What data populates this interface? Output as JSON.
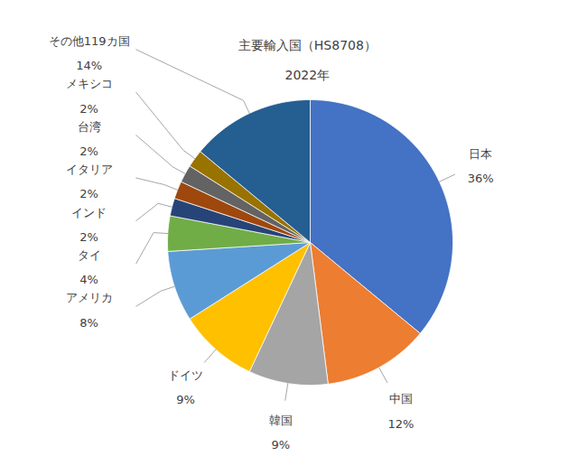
{
  "chart_data": {
    "type": "pie",
    "title": "主要輸入国（HS8708）",
    "subtitle": "2022年",
    "categories": [
      "日本",
      "中国",
      "韓国",
      "ドイツ",
      "アメリカ",
      "タイ",
      "インド",
      "イタリア",
      "台湾",
      "メキシコ",
      "その他119カ国"
    ],
    "values": [
      36,
      12,
      9,
      9,
      8,
      4,
      2,
      2,
      2,
      2,
      14
    ],
    "value_labels": [
      "36%",
      "12%",
      "9%",
      "9%",
      "8%",
      "4%",
      "2%",
      "2%",
      "2%",
      "2%",
      "14%"
    ],
    "colors": [
      "#4472C4",
      "#ED7D31",
      "#A5A5A5",
      "#FFC000",
      "#5B9BD5",
      "#70AD47",
      "#264478",
      "#9E480E",
      "#636363",
      "#997300",
      "#255E91"
    ],
    "data_labels": true
  }
}
